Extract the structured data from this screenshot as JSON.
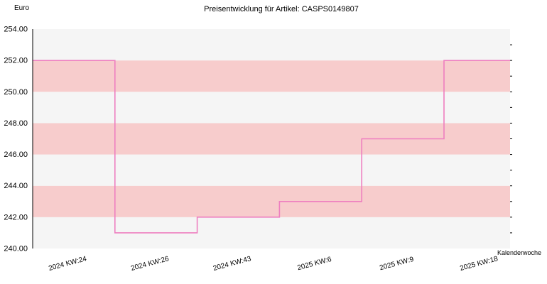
{
  "chart_data": {
    "type": "line",
    "title": "Preisentwicklung für Artikel: CASPS0149807",
    "ylabel": "Euro",
    "xlabel": "Kalenderwoche",
    "ylim": [
      240,
      254
    ],
    "y_ticks": [
      "240.00",
      "242.00",
      "244.00",
      "246.00",
      "248.00",
      "250.00",
      "252.00",
      "254.00"
    ],
    "x_ticks": [
      "2024 KW:24",
      "2024 KW:26",
      "2024 KW:43",
      "2025 KW:6",
      "2025 KW:9",
      "2025 KW:18"
    ],
    "step": true,
    "grid": "alternating horizontal bands",
    "series": [
      {
        "x": [
          "2024 KW:24",
          "2024 KW:26",
          "2024 KW:43",
          "2025 KW:6",
          "2025 KW:9",
          "2025 KW:18"
        ],
        "values": [
          252,
          241,
          242,
          243,
          247,
          252
        ]
      }
    ],
    "colors": {
      "line": "#ee7fc0",
      "band_light": "#f5f5f5",
      "band_pink": "#f7cccc",
      "axis": "#000000"
    }
  }
}
